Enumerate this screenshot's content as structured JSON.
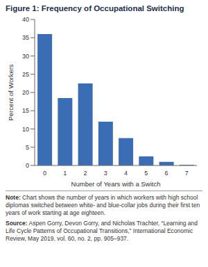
{
  "chart_data": {
    "type": "bar",
    "title": "Figure 1: Frequency of Occupational Switching",
    "x_label": "Number of Years with a Switch",
    "y_label": "Percent of Workers",
    "categories": [
      "0",
      "1",
      "2",
      "3",
      "4",
      "5",
      "6",
      "7"
    ],
    "values": [
      36,
      18.5,
      22.5,
      12,
      7.5,
      2.5,
      1,
      0.2
    ],
    "color": "#3b6db4",
    "ylim": [
      0,
      40
    ],
    "yticks": [
      0,
      5,
      10,
      15,
      20,
      25,
      30,
      35,
      40
    ],
    "grid": false,
    "note": "Note: Chart shows the number of years in which workers with high school diplomas switched between white- and blue-collar jobs during their first ten years of work starting at age eighteen.",
    "source": "Source: Aspen Gorry, Devon Gorry, and Nicholas Trachter, “Learning and Life Cycle Patterns of Occupational Transitions,” International Economic Review, May 2019, vol. 60, no. 2, pp. 905–937."
  }
}
